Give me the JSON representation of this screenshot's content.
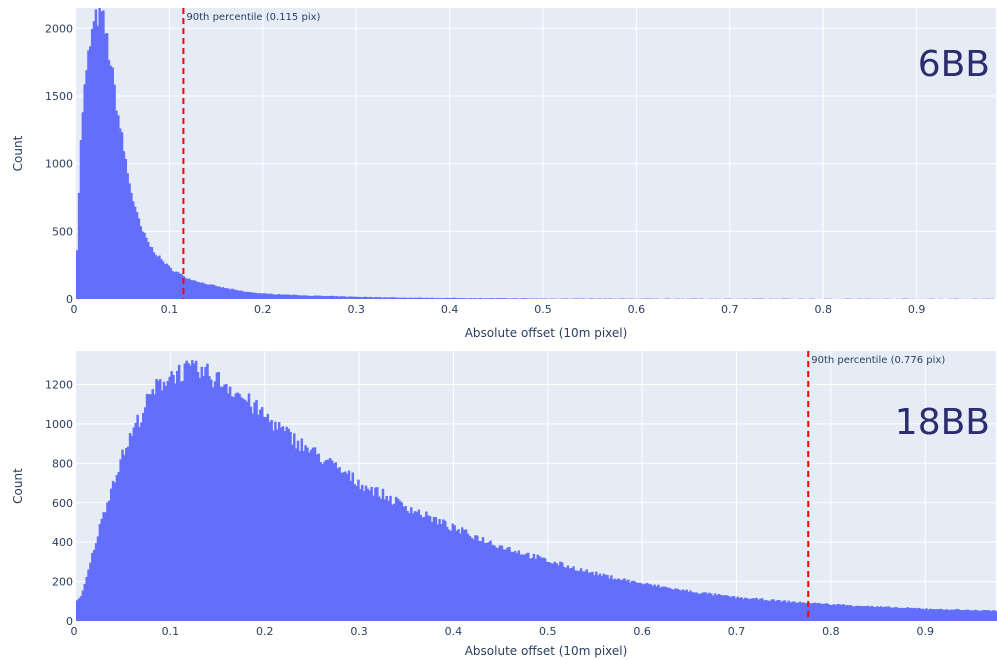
{
  "colors": {
    "bar": "#636efa",
    "plot_background": "#e5ecf6",
    "grid": "#ffffff",
    "percentile_line": "#ff0000",
    "panel_tag": "#2b2d6e"
  },
  "chart_data": [
    {
      "type": "bar",
      "panel_label": "6BB",
      "xlabel": "Absolute offset (10m pixel)",
      "ylabel": "Count",
      "xlim": [
        0,
        0.985
      ],
      "ylim": [
        0,
        2150
      ],
      "x_ticks": [
        0,
        0.1,
        0.2,
        0.3,
        0.4,
        0.5,
        0.6,
        0.7,
        0.8,
        0.9
      ],
      "x_tick_labels": [
        "0",
        "0.1",
        "0.2",
        "0.3",
        "0.4",
        "0.5",
        "0.6",
        "0.7",
        "0.8",
        "0.9"
      ],
      "y_ticks": [
        0,
        500,
        1000,
        1500,
        2000
      ],
      "y_tick_labels": [
        "0",
        "500",
        "1000",
        "1500",
        "2000"
      ],
      "grid": true,
      "bin_width": 0.002,
      "percentile_line": {
        "x": 0.115,
        "label": "90th percentile (0.115 pix)"
      },
      "curve": [
        [
          0,
          150
        ],
        [
          0.002,
          600
        ],
        [
          0.004,
          1000
        ],
        [
          0.006,
          1300
        ],
        [
          0.008,
          1500
        ],
        [
          0.01,
          1600
        ],
        [
          0.014,
          1850
        ],
        [
          0.018,
          2000
        ],
        [
          0.022,
          2080
        ],
        [
          0.025,
          2110
        ],
        [
          0.028,
          2090
        ],
        [
          0.032,
          1950
        ],
        [
          0.036,
          1780
        ],
        [
          0.04,
          1600
        ],
        [
          0.045,
          1350
        ],
        [
          0.05,
          1150
        ],
        [
          0.055,
          930
        ],
        [
          0.06,
          760
        ],
        [
          0.065,
          620
        ],
        [
          0.07,
          510
        ],
        [
          0.08,
          380
        ],
        [
          0.09,
          300
        ],
        [
          0.1,
          230
        ],
        [
          0.11,
          190
        ],
        [
          0.12,
          150
        ],
        [
          0.14,
          110
        ],
        [
          0.16,
          80
        ],
        [
          0.18,
          55
        ],
        [
          0.2,
          40
        ],
        [
          0.25,
          25
        ],
        [
          0.3,
          16
        ],
        [
          0.35,
          10
        ],
        [
          0.4,
          7
        ],
        [
          0.45,
          5
        ],
        [
          0.5,
          3
        ],
        [
          0.6,
          2
        ],
        [
          0.7,
          1.5
        ],
        [
          0.85,
          1
        ],
        [
          0.985,
          1
        ]
      ]
    },
    {
      "type": "bar",
      "panel_label": "18BB",
      "xlabel": "Absolute offset (10m pixel)",
      "ylabel": "Count",
      "xlim": [
        0,
        0.975
      ],
      "ylim": [
        0,
        1370
      ],
      "x_ticks": [
        0,
        0.1,
        0.2,
        0.3,
        0.4,
        0.5,
        0.6,
        0.7,
        0.8,
        0.9
      ],
      "x_tick_labels": [
        "0",
        "0.1",
        "0.2",
        "0.3",
        "0.4",
        "0.5",
        "0.6",
        "0.7",
        "0.8",
        "0.9"
      ],
      "y_ticks": [
        0,
        200,
        400,
        600,
        800,
        1000,
        1200
      ],
      "y_tick_labels": [
        "0",
        "200",
        "400",
        "600",
        "800",
        "1000",
        "1200"
      ],
      "grid": true,
      "bin_width": 0.002,
      "percentile_line": {
        "x": 0.776,
        "label": "90th percentile (0.776 pix)"
      },
      "curve": [
        [
          0,
          100
        ],
        [
          0.005,
          120
        ],
        [
          0.01,
          200
        ],
        [
          0.02,
          390
        ],
        [
          0.03,
          560
        ],
        [
          0.04,
          720
        ],
        [
          0.05,
          850
        ],
        [
          0.06,
          960
        ],
        [
          0.07,
          1060
        ],
        [
          0.08,
          1150
        ],
        [
          0.09,
          1210
        ],
        [
          0.1,
          1250
        ],
        [
          0.11,
          1265
        ],
        [
          0.12,
          1270
        ],
        [
          0.13,
          1265
        ],
        [
          0.14,
          1250
        ],
        [
          0.15,
          1225
        ],
        [
          0.16,
          1200
        ],
        [
          0.18,
          1120
        ],
        [
          0.2,
          1040
        ],
        [
          0.22,
          960
        ],
        [
          0.25,
          860
        ],
        [
          0.3,
          700
        ],
        [
          0.35,
          580
        ],
        [
          0.4,
          470
        ],
        [
          0.45,
          380
        ],
        [
          0.5,
          305
        ],
        [
          0.55,
          240
        ],
        [
          0.6,
          190
        ],
        [
          0.65,
          150
        ],
        [
          0.7,
          120
        ],
        [
          0.75,
          100
        ],
        [
          0.8,
          85
        ],
        [
          0.85,
          72
        ],
        [
          0.9,
          62
        ],
        [
          0.975,
          52
        ]
      ]
    }
  ]
}
